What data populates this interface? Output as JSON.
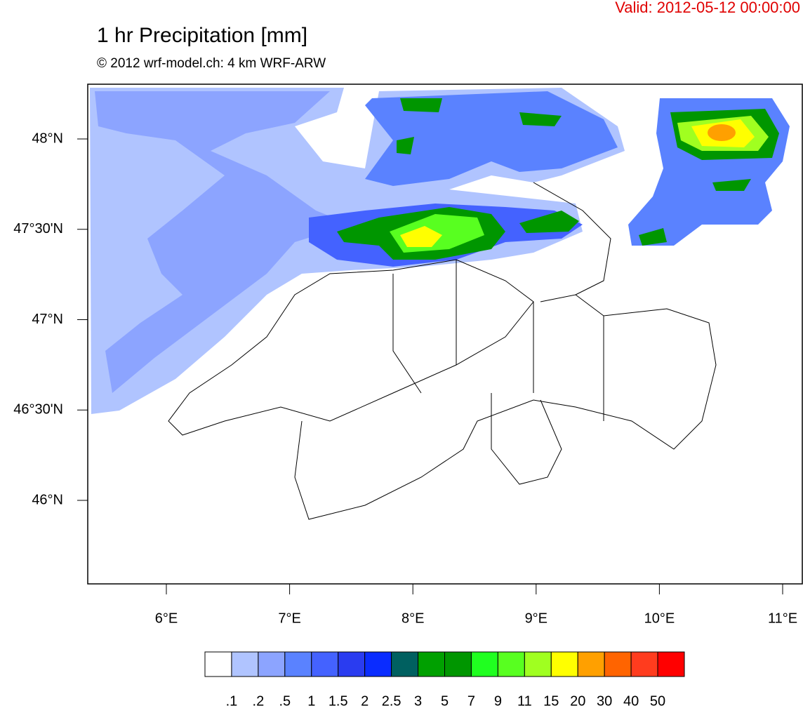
{
  "header": {
    "valid": "Valid: 2012-05-12 00:00:00",
    "title": "1 hr Precipitation [mm]",
    "subtitle": "© 2012 wrf-model.ch: 4 km WRF-ARW"
  },
  "map": {
    "lat_ticks": [
      {
        "value": 48,
        "label": "48°N"
      },
      {
        "value": 47.5,
        "label": "47°30'N"
      },
      {
        "value": 47,
        "label": "47°N"
      },
      {
        "value": 46.5,
        "label": "46°30'N"
      },
      {
        "value": 46,
        "label": "46°N"
      }
    ],
    "lon_ticks": [
      {
        "value": 6,
        "label": "6°E"
      },
      {
        "value": 7,
        "label": "7°E"
      },
      {
        "value": 8,
        "label": "8°E"
      },
      {
        "value": 9,
        "label": "9°E"
      },
      {
        "value": 10,
        "label": "10°E"
      },
      {
        "value": 11,
        "label": "11°E"
      }
    ]
  },
  "colorbar": {
    "colors": [
      "#ffffff",
      "#b0c4ff",
      "#8ca4ff",
      "#5a82ff",
      "#4462ff",
      "#2a3cf0",
      "#0a2cff",
      "#006060",
      "#00a000",
      "#009600",
      "#20ff20",
      "#58ff20",
      "#a0ff20",
      "#ffff00",
      "#ffa000",
      "#ff6400",
      "#ff3c1e",
      "#ff0000"
    ],
    "labels": [
      ".1",
      ".2",
      ".5",
      "1",
      "1.5",
      "2",
      "2.5",
      "3",
      "5",
      "7",
      "9",
      "11",
      "15",
      "20",
      "30",
      "40",
      "50"
    ]
  }
}
